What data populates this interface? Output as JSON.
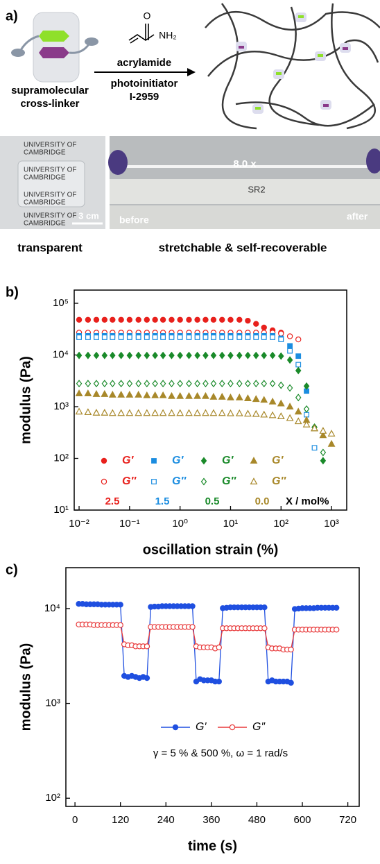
{
  "panel_a": {
    "label": "a)",
    "crosslinker": [
      "supramolecular",
      "cross-linker"
    ],
    "reagent_atoms": [
      "O",
      "NH₂"
    ],
    "reagent": "acrylamide",
    "initiator": [
      "photoinitiator",
      "I-2959"
    ],
    "logo": [
      "UNIVERSITY OF",
      "CAMBRIDGE"
    ],
    "scale_bar": "3 cm",
    "stretch": "8.0 x",
    "sample": "SR2",
    "before": "before",
    "after": "after",
    "captions": [
      "transparent",
      "stretchable & self-recoverable"
    ]
  },
  "chart_data": [
    {
      "type": "scatter",
      "panel": "b)",
      "ylabel": "modulus (Pa)",
      "xlabel": "oscillation strain (%)",
      "xscale": "log",
      "yscale": "log",
      "xlim": [
        0.008,
        2000
      ],
      "ylim": [
        10,
        180000
      ],
      "xticks": [
        {
          "value": 0.01,
          "label": "10⁻²"
        },
        {
          "value": 0.1,
          "label": "10⁻¹"
        },
        {
          "value": 1,
          "label": "10⁰"
        },
        {
          "value": 10,
          "label": "10¹"
        },
        {
          "value": 100,
          "label": "10²"
        },
        {
          "value": 1000,
          "label": "10³"
        }
      ],
      "yticks": [
        {
          "value": 10,
          "label": "10¹"
        },
        {
          "value": 100,
          "label": "10²"
        },
        {
          "value": 1000,
          "label": "10³"
        },
        {
          "value": 10000,
          "label": "10⁴"
        },
        {
          "value": 100000,
          "label": "10⁵"
        }
      ],
      "x": [
        0.01,
        0.015,
        0.022,
        0.032,
        0.046,
        0.068,
        0.1,
        0.15,
        0.22,
        0.32,
        0.46,
        0.68,
        1,
        1.5,
        2.2,
        3.2,
        4.6,
        6.8,
        10,
        15,
        22,
        32,
        46,
        68,
        100,
        150,
        220,
        320,
        460,
        680,
        1000
      ],
      "series": [
        {
          "name": "G′",
          "color": "#e8201c",
          "marker": "circle",
          "filled": true,
          "values": [
            48000,
            48000,
            48000,
            48000,
            48000,
            48000,
            48000,
            48000,
            48000,
            48000,
            48000,
            48000,
            48000,
            48000,
            48000,
            48000,
            48000,
            48000,
            48000,
            48000,
            46000,
            40000,
            34000,
            30000,
            27000,
            null,
            null,
            null,
            null,
            null,
            null
          ]
        },
        {
          "name": "G″",
          "color": "#e8201c",
          "marker": "circle",
          "filled": false,
          "values": [
            27000,
            27000,
            27000,
            27000,
            27000,
            27000,
            27000,
            27000,
            27000,
            27000,
            27000,
            27000,
            27000,
            27000,
            27000,
            27000,
            27000,
            27000,
            27000,
            27000,
            27000,
            27000,
            27000,
            27000,
            26000,
            23000,
            20000,
            null,
            null,
            null,
            null
          ]
        },
        {
          "name": "G′",
          "color": "#1b8de0",
          "marker": "square",
          "filled": true,
          "values": [
            23500,
            23500,
            23500,
            23500,
            23500,
            23500,
            23500,
            23500,
            23500,
            23500,
            23500,
            23500,
            23500,
            23500,
            23500,
            23500,
            23500,
            23500,
            23500,
            23500,
            23500,
            23500,
            23500,
            23500,
            21000,
            15000,
            9500,
            2000,
            null,
            null,
            null
          ]
        },
        {
          "name": "G″",
          "color": "#1b8de0",
          "marker": "square",
          "filled": false,
          "values": [
            22000,
            22000,
            22000,
            22000,
            22000,
            22000,
            22000,
            22000,
            22000,
            22000,
            22000,
            22000,
            22000,
            22000,
            22000,
            22000,
            22000,
            22000,
            22000,
            22000,
            22000,
            22000,
            22000,
            22000,
            20000,
            12000,
            6500,
            700,
            160,
            null,
            null
          ]
        },
        {
          "name": "G′",
          "color": "#1a8a2a",
          "marker": "diamond",
          "filled": true,
          "values": [
            9800,
            9800,
            9800,
            9800,
            9800,
            9800,
            9800,
            9800,
            9800,
            9800,
            9800,
            9800,
            9800,
            9800,
            9800,
            9800,
            9800,
            9800,
            9800,
            9800,
            9800,
            9800,
            9800,
            9800,
            9500,
            8000,
            5000,
            2500,
            400,
            90,
            null
          ]
        },
        {
          "name": "G″",
          "color": "#1a8a2a",
          "marker": "diamond",
          "filled": false,
          "values": [
            2800,
            2800,
            2800,
            2800,
            2800,
            2800,
            2800,
            2800,
            2800,
            2800,
            2800,
            2800,
            2800,
            2800,
            2800,
            2800,
            2800,
            2800,
            2800,
            2800,
            2800,
            2800,
            2800,
            2800,
            2600,
            2300,
            1500,
            900,
            400,
            130,
            null
          ]
        },
        {
          "name": "G′",
          "color": "#a8882a",
          "marker": "triangle",
          "filled": true,
          "values": [
            1800,
            1800,
            1750,
            1750,
            1700,
            1700,
            1700,
            1700,
            1650,
            1650,
            1650,
            1600,
            1600,
            1600,
            1600,
            1600,
            1550,
            1550,
            1500,
            1500,
            1450,
            1400,
            1350,
            1250,
            1150,
            1000,
            800,
            550,
            380,
            280,
            190
          ]
        },
        {
          "name": "G″",
          "color": "#a8882a",
          "marker": "triangle",
          "filled": false,
          "values": [
            800,
            780,
            760,
            760,
            750,
            750,
            750,
            750,
            750,
            750,
            750,
            750,
            750,
            750,
            750,
            750,
            750,
            750,
            740,
            740,
            730,
            720,
            700,
            680,
            650,
            600,
            520,
            450,
            380,
            340,
            300
          ]
        }
      ],
      "legend_groups": [
        "2.5",
        "1.5",
        "0.5",
        "0.0"
      ],
      "legend_unit": "X / mol%"
    },
    {
      "type": "line",
      "panel": "c)",
      "ylabel": "modulus (Pa)",
      "xlabel": "time (s)",
      "xscale": "linear",
      "yscale": "log",
      "xlim": [
        -24,
        750
      ],
      "ylim": [
        82,
        27000
      ],
      "xticks": [
        0,
        120,
        240,
        360,
        480,
        600,
        720
      ],
      "yticks": [
        {
          "value": 100,
          "label": "10²"
        },
        {
          "value": 1000,
          "label": "10³"
        },
        {
          "value": 10000,
          "label": "10⁴"
        }
      ],
      "x": [
        10,
        20,
        30,
        40,
        50,
        60,
        70,
        80,
        90,
        100,
        110,
        120,
        130,
        140,
        150,
        160,
        170,
        180,
        190,
        200,
        210,
        220,
        230,
        240,
        250,
        260,
        270,
        280,
        290,
        300,
        310,
        320,
        330,
        340,
        350,
        360,
        370,
        380,
        390,
        400,
        410,
        420,
        430,
        440,
        450,
        460,
        470,
        480,
        490,
        500,
        510,
        520,
        530,
        540,
        550,
        560,
        570,
        580,
        590,
        600,
        610,
        620,
        630,
        640,
        650,
        660,
        670,
        680,
        690
      ],
      "series": [
        {
          "name": "G′",
          "color": "#1f4fe0",
          "marker": "circle",
          "filled": true,
          "values": [
            11200,
            11200,
            11100,
            11100,
            11100,
            11100,
            11000,
            11000,
            11000,
            11000,
            11000,
            11000,
            1950,
            1900,
            1950,
            1900,
            1850,
            1900,
            1850,
            10400,
            10500,
            10500,
            10600,
            10600,
            10600,
            10600,
            10600,
            10600,
            10600,
            10600,
            10600,
            1700,
            1800,
            1750,
            1750,
            1750,
            1700,
            1700,
            10100,
            10200,
            10300,
            10300,
            10300,
            10300,
            10300,
            10300,
            10300,
            10300,
            10300,
            10300,
            1700,
            1750,
            1700,
            1700,
            1700,
            1700,
            1650,
            9900,
            10000,
            10100,
            10100,
            10100,
            10100,
            10200,
            10200,
            10200,
            10200,
            10200,
            10200
          ]
        },
        {
          "name": "G″",
          "color": "#e8393a",
          "marker": "circle",
          "filled": false,
          "values": [
            6800,
            6800,
            6800,
            6800,
            6700,
            6700,
            6700,
            6700,
            6700,
            6700,
            6700,
            6700,
            4200,
            4100,
            4100,
            4000,
            4000,
            4000,
            4000,
            6400,
            6400,
            6400,
            6400,
            6400,
            6400,
            6400,
            6400,
            6400,
            6400,
            6400,
            6400,
            4000,
            3900,
            3900,
            3900,
            3900,
            3800,
            3900,
            6200,
            6200,
            6200,
            6200,
            6200,
            6200,
            6200,
            6200,
            6200,
            6200,
            6200,
            6200,
            3900,
            3800,
            3800,
            3800,
            3700,
            3700,
            3700,
            6000,
            6000,
            6000,
            6000,
            6000,
            6000,
            6000,
            6000,
            6000,
            6000,
            6000,
            6000
          ]
        }
      ],
      "annotation": "γ = 5 % & 500 %, ω = 1 rad/s"
    }
  ]
}
